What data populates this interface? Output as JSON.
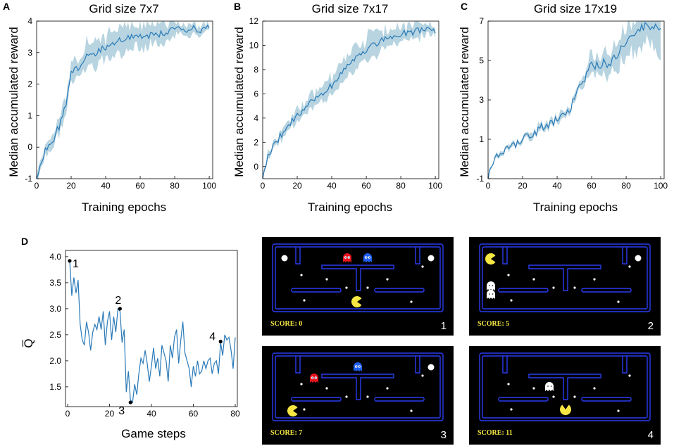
{
  "colors": {
    "line": "#2a7ab8",
    "band": "#b7d4e0",
    "maze_wall": "#2a3cf0",
    "pacman": "#f5e642",
    "ghost_red": "#e8141e",
    "ghost_blue": "#1f5ff2",
    "ghost_white": "#ffffff",
    "game_bg": "#000000"
  },
  "chart_data": [
    {
      "panel": "A",
      "type": "line",
      "title": "Grid size 7x7",
      "xlabel": "Training epochs",
      "ylabel": "Median accumulated reward",
      "xlim": [
        0,
        102
      ],
      "ylim": [
        -1,
        4
      ],
      "xticks": [
        "0",
        "20",
        "40",
        "60",
        "80",
        "100"
      ],
      "yticks": [
        "-1",
        "0",
        "1",
        "2",
        "3",
        "4"
      ],
      "keypoints": [
        [
          0,
          -0.9
        ],
        [
          5,
          -0.1
        ],
        [
          10,
          0.3
        ],
        [
          15,
          0.9
        ],
        [
          18,
          1.6
        ],
        [
          20,
          2.3
        ],
        [
          25,
          2.6
        ],
        [
          30,
          2.9
        ],
        [
          35,
          3.0
        ],
        [
          40,
          3.2
        ],
        [
          45,
          3.3
        ],
        [
          50,
          3.45
        ],
        [
          60,
          3.5
        ],
        [
          70,
          3.6
        ],
        [
          80,
          3.7
        ],
        [
          90,
          3.75
        ],
        [
          100,
          3.75
        ]
      ],
      "noise": 0.12,
      "band_width": [
        0.15,
        0.45,
        0.1
      ],
      "seed": 11
    },
    {
      "panel": "B",
      "type": "line",
      "title": "Grid size 7x17",
      "xlabel": "Training epochs",
      "ylabel": "Median accumulated reward",
      "xlim": [
        0,
        102
      ],
      "ylim": [
        -1,
        12
      ],
      "xticks": [
        "0",
        "20",
        "40",
        "60",
        "80",
        "100"
      ],
      "yticks": [
        "0",
        "2",
        "4",
        "6",
        "8",
        "10",
        "12"
      ],
      "keypoints": [
        [
          0,
          -0.9
        ],
        [
          3,
          1.0
        ],
        [
          10,
          2.5
        ],
        [
          20,
          4.2
        ],
        [
          30,
          5.5
        ],
        [
          40,
          6.7
        ],
        [
          50,
          8.3
        ],
        [
          60,
          9.7
        ],
        [
          70,
          10.5
        ],
        [
          80,
          10.9
        ],
        [
          90,
          11.2
        ],
        [
          100,
          11.3
        ]
      ],
      "noise": 0.3,
      "band_width": [
        0.2,
        0.9,
        0.5
      ],
      "seed": 23
    },
    {
      "panel": "C",
      "type": "line",
      "title": "Grid size 17x19",
      "xlabel": "Training epochs",
      "ylabel": "Median accumulated reward",
      "xlim": [
        0,
        102
      ],
      "ylim": [
        -1,
        7
      ],
      "xticks": [
        "0",
        "20",
        "40",
        "60",
        "80",
        "100"
      ],
      "yticks": [
        "-1",
        "1",
        "3",
        "5",
        "7"
      ],
      "keypoints": [
        [
          0,
          -1.0
        ],
        [
          5,
          0.2
        ],
        [
          20,
          1.0
        ],
        [
          40,
          2.0
        ],
        [
          48,
          2.5
        ],
        [
          50,
          3.2
        ],
        [
          55,
          4.0
        ],
        [
          60,
          4.7
        ],
        [
          70,
          4.9
        ],
        [
          80,
          5.8
        ],
        [
          88,
          6.6
        ],
        [
          95,
          6.8
        ],
        [
          100,
          6.5
        ]
      ],
      "noise": 0.25,
      "band_width": [
        0.1,
        0.2,
        1.2
      ],
      "seed": 37
    },
    {
      "panel": "D",
      "type": "line",
      "xlabel": "Game steps",
      "ylabel": "Q̅",
      "xlim": [
        -1,
        81
      ],
      "ylim": [
        1.12,
        4.12
      ],
      "xticks": [
        "0",
        "20",
        "40",
        "60",
        "80"
      ],
      "yticks": [
        "1.5",
        "2.0",
        "2.5",
        "3.0",
        "3.5",
        "4.0"
      ],
      "x": [
        1,
        2,
        3,
        4,
        5,
        6,
        7,
        8,
        9,
        10,
        11,
        12,
        13,
        14,
        15,
        16,
        17,
        18,
        19,
        20,
        21,
        22,
        23,
        24,
        25,
        26,
        27,
        28,
        29,
        30,
        31,
        32,
        33,
        34,
        35,
        36,
        37,
        38,
        39,
        40,
        41,
        42,
        43,
        44,
        45,
        46,
        47,
        48,
        49,
        50,
        51,
        52,
        53,
        54,
        55,
        56,
        57,
        58,
        59,
        60,
        61,
        62,
        63,
        64,
        65,
        66,
        67,
        68,
        69,
        70,
        71,
        72,
        73,
        74,
        75,
        76,
        77,
        78,
        79,
        80
      ],
      "values": [
        3.92,
        3.25,
        3.6,
        3.3,
        3.55,
        2.7,
        2.4,
        2.3,
        2.75,
        2.55,
        2.2,
        2.55,
        2.7,
        2.6,
        2.85,
        2.6,
        2.95,
        2.3,
        2.75,
        2.95,
        2.4,
        2.85,
        2.55,
        3.0,
        2.95,
        2.35,
        2.6,
        1.4,
        1.8,
        1.25,
        1.2,
        1.55,
        1.35,
        1.75,
        2.05,
        1.95,
        2.2,
        1.95,
        1.6,
        1.9,
        2.25,
        1.85,
        2.05,
        1.7,
        2.3,
        2.15,
        2.0,
        1.6,
        2.3,
        2.05,
        2.45,
        2.6,
        1.95,
        2.4,
        2.75,
        2.15,
        2.0,
        1.85,
        1.5,
        1.9,
        1.7,
        2.0,
        1.75,
        1.8,
        2.0,
        1.85,
        2.0,
        2.05,
        1.75,
        1.95,
        2.0,
        1.75,
        2.35,
        2.1,
        2.5,
        2.4,
        2.45,
        2.2,
        1.85,
        2.45
      ],
      "annotations": [
        {
          "label": "1",
          "x": 1,
          "y": 3.92
        },
        {
          "label": "2",
          "x": 25,
          "y": 3.0
        },
        {
          "label": "3",
          "x": 30,
          "y": 1.2
        },
        {
          "label": "4",
          "x": 73,
          "y": 2.37
        }
      ]
    }
  ],
  "panels": {
    "A": "A",
    "B": "B",
    "C": "C",
    "D": "D"
  },
  "game_frames": [
    {
      "number": "1",
      "score": "SCORE:   0",
      "ghosts": [
        "red",
        "blue"
      ],
      "pacman": "right"
    },
    {
      "number": "2",
      "score": "SCORE:   5",
      "ghosts": [
        "white",
        "white"
      ],
      "pacman": "right"
    },
    {
      "number": "3",
      "score": "SCORE:   7",
      "ghosts": [
        "red",
        "blue"
      ],
      "pacman": "right"
    },
    {
      "number": "4",
      "score": "SCORE:   11",
      "ghosts": [
        "white"
      ],
      "pacman": "up"
    }
  ]
}
